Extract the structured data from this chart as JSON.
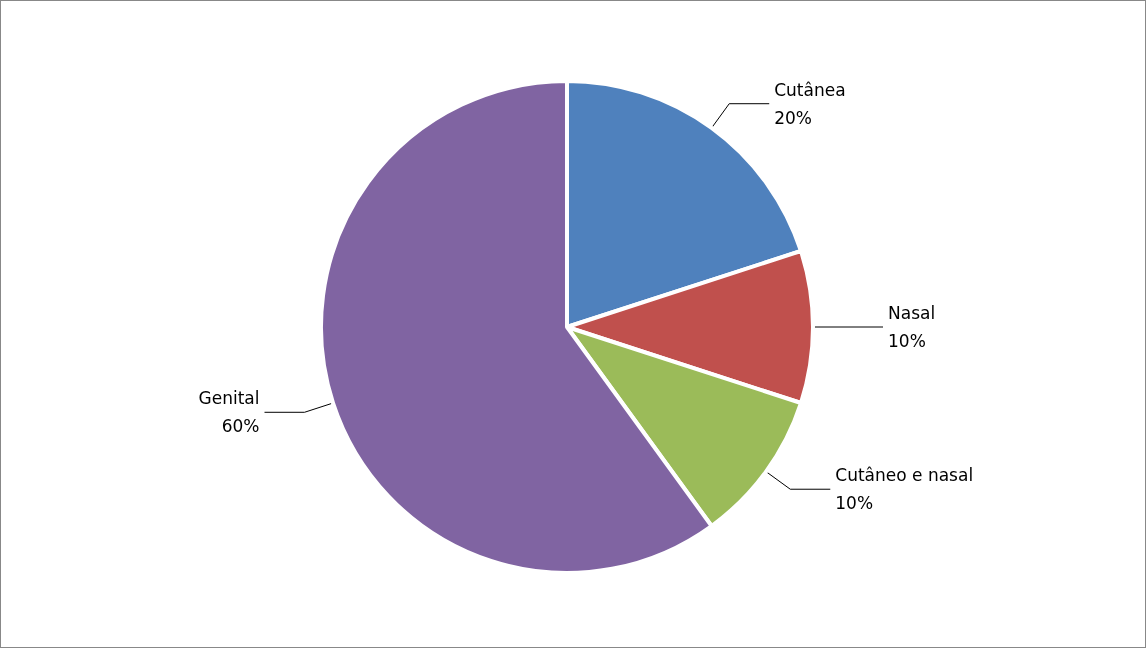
{
  "chart_data": {
    "type": "pie",
    "categories": [
      "Cutânea",
      "Nasal",
      "Cutâneo e nasal",
      "Genital"
    ],
    "values": [
      20,
      10,
      10,
      60
    ],
    "value_labels": [
      "20%",
      "10%",
      "10%",
      "60%"
    ],
    "colors": [
      "#4f81bd",
      "#c0504d",
      "#9bbb59",
      "#8064a2"
    ],
    "legend": false
  }
}
